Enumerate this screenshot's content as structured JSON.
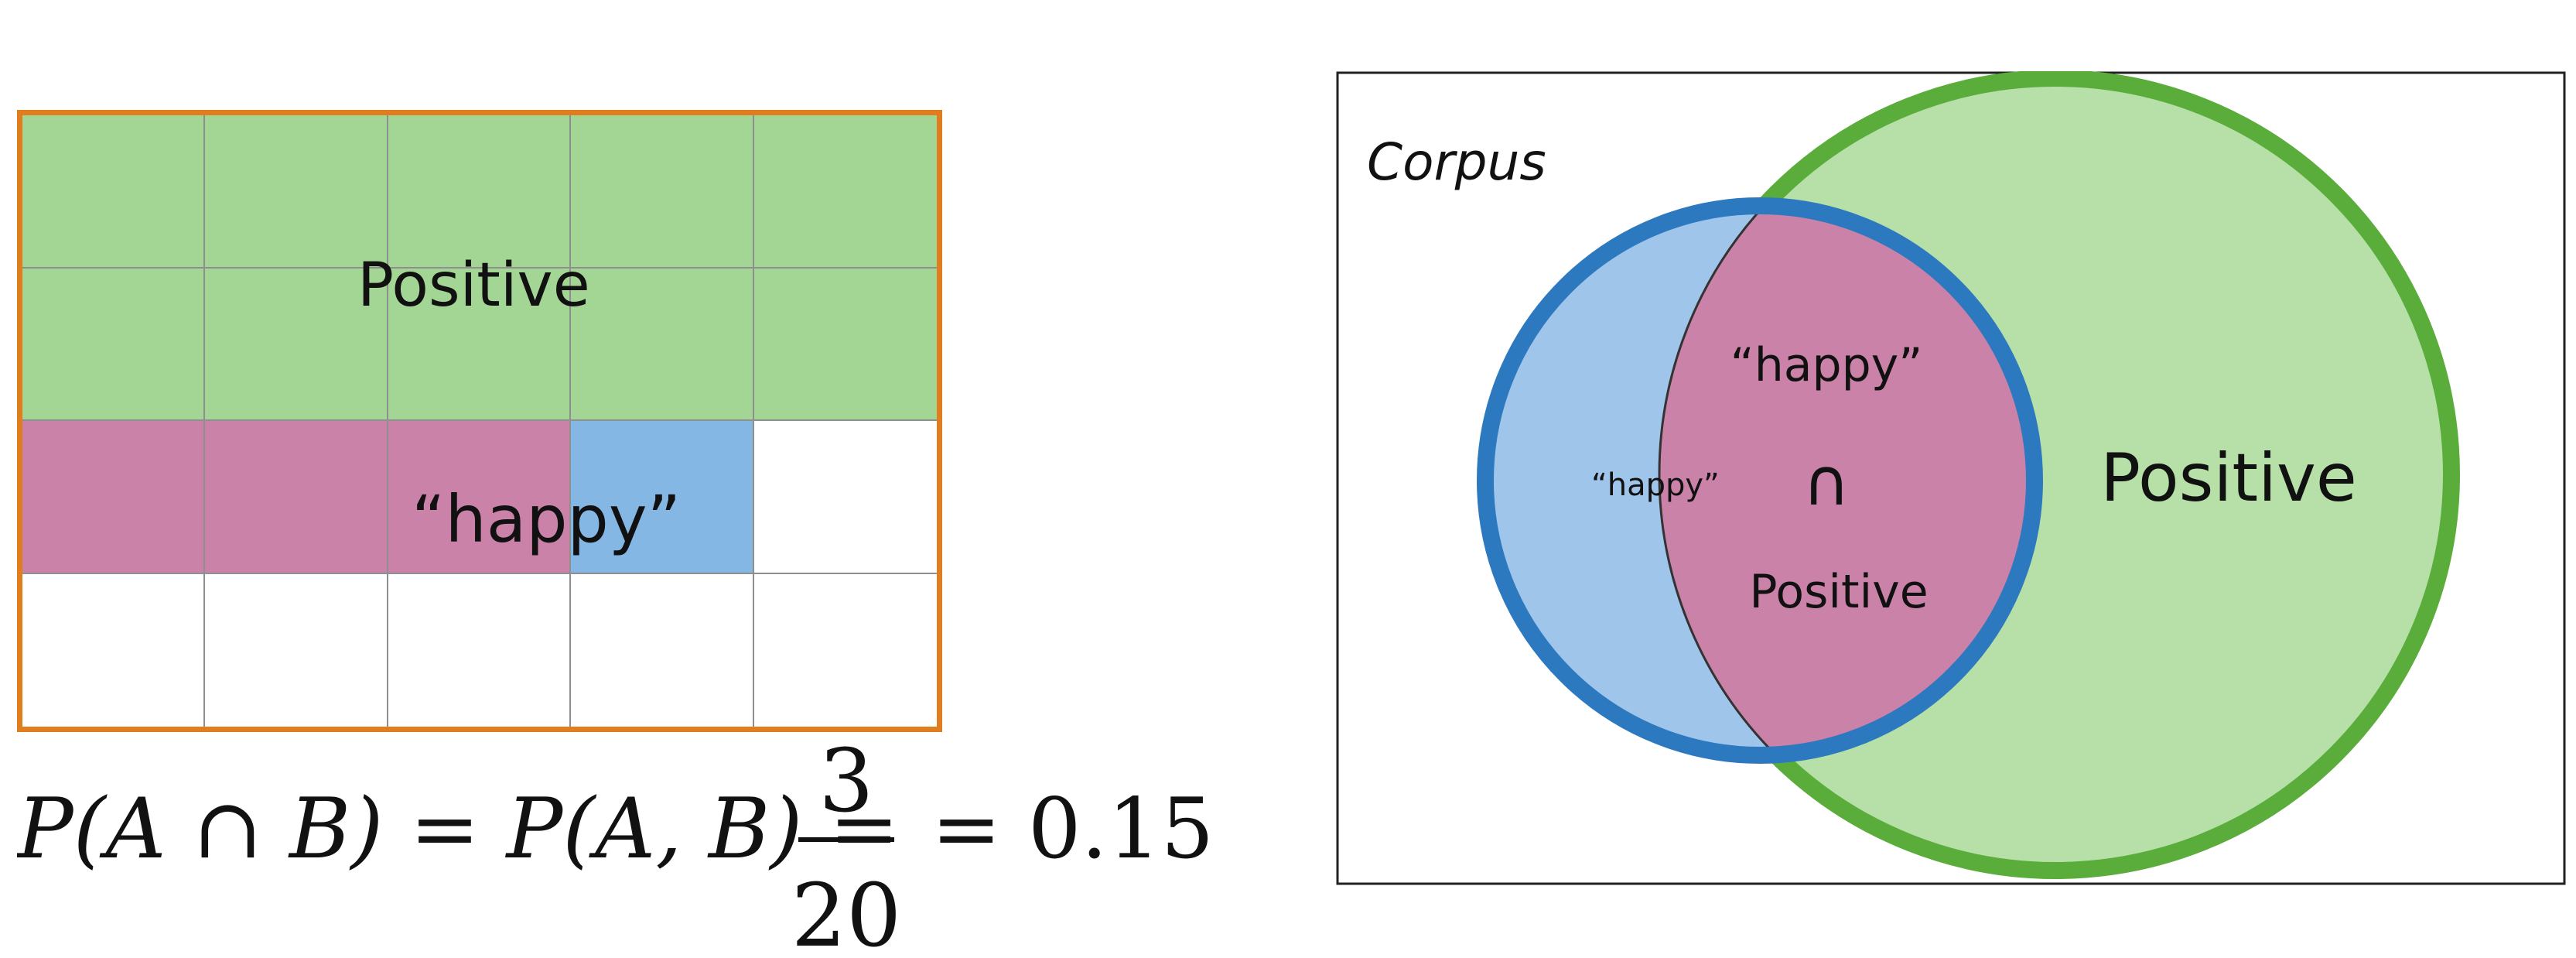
{
  "grid": {
    "rows": 4,
    "cols": 5,
    "cells": [
      [
        "positive",
        "positive",
        "positive",
        "positive",
        "positive"
      ],
      [
        "positive",
        "positive",
        "positive",
        "positive",
        "positive"
      ],
      [
        "happy-positive",
        "happy-positive",
        "happy-positive",
        "happy-only",
        "empty"
      ],
      [
        "empty",
        "empty",
        "empty",
        "empty",
        "empty"
      ]
    ],
    "label_positive": "Positive",
    "label_happy": "“happy”"
  },
  "colors": {
    "positive": "#a3d694",
    "happy-positive": "#cb82a8",
    "happy-only": "#85b7e4",
    "empty": "#ffffff",
    "grid_border": "#e07d1c",
    "venn_happy_fill": "#a0c5ea",
    "venn_happy_stroke": "#2d79c0",
    "venn_positive_fill": "#b6e0a8",
    "venn_positive_stroke": "#5aad3b",
    "venn_intersection": "#cb82a8"
  },
  "formula": {
    "lhs": "P(A ∩ B) = P(A, B) =",
    "numerator": "3",
    "denominator": "20",
    "result": "= 0.15"
  },
  "venn": {
    "corpus_label": "Corpus",
    "happy_label": "“happy”",
    "intersection_top": "“happy”",
    "intersection_symbol": "∩",
    "intersection_bottom": "Positive",
    "positive_label": "Positive"
  }
}
